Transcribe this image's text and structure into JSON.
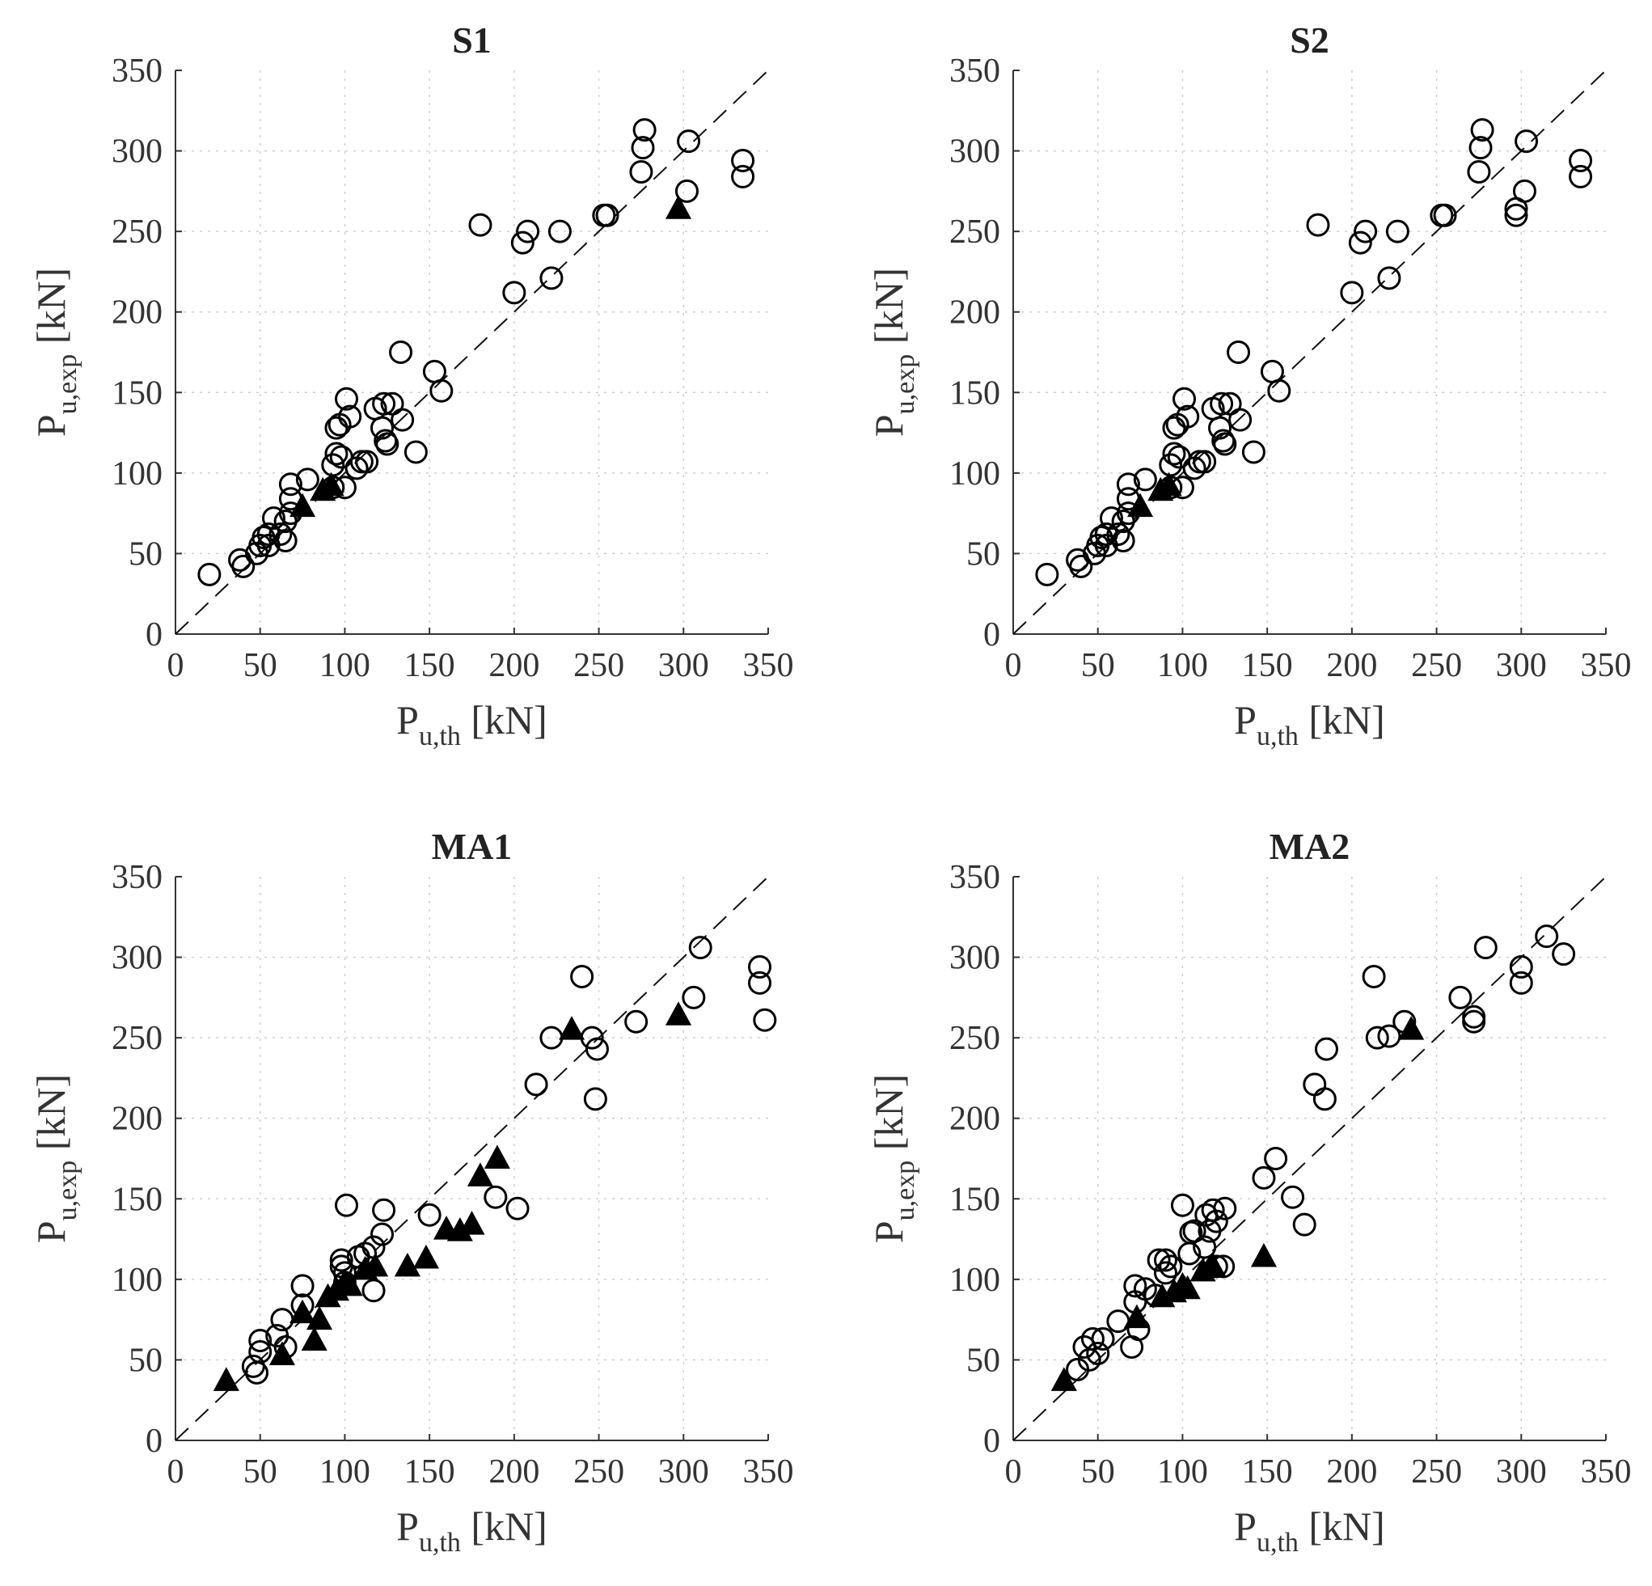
{
  "chart_data": [
    {
      "type": "scatter",
      "title": "S1",
      "xlabel": {
        "main": "P",
        "sub": "u,th",
        "unit": " [kN]"
      },
      "ylabel": {
        "main": "P",
        "sub": "u,exp",
        "unit": " [kN]"
      },
      "xlim": [
        0,
        350
      ],
      "ylim": [
        0,
        350
      ],
      "xticks": [
        0,
        50,
        100,
        150,
        200,
        250,
        300,
        350
      ],
      "yticks": [
        0,
        50,
        100,
        150,
        200,
        250,
        300,
        350
      ],
      "grid": true,
      "reference_line": [
        [
          0,
          0
        ],
        [
          350,
          350
        ]
      ],
      "series": [
        {
          "name": "circles",
          "marker": "circle",
          "points": [
            [
              20,
              37
            ],
            [
              38,
              46
            ],
            [
              40,
              42
            ],
            [
              48,
              50
            ],
            [
              50,
              55
            ],
            [
              52,
              60
            ],
            [
              55,
              62
            ],
            [
              55,
              55
            ],
            [
              58,
              72
            ],
            [
              62,
              62
            ],
            [
              65,
              58
            ],
            [
              65,
              70
            ],
            [
              68,
              75
            ],
            [
              68,
              84
            ],
            [
              68,
              93
            ],
            [
              78,
              96
            ],
            [
              93,
              91
            ],
            [
              93,
              105
            ],
            [
              95,
              112
            ],
            [
              95,
              128
            ],
            [
              97,
              130
            ],
            [
              98,
              110
            ],
            [
              100,
              91
            ],
            [
              101,
              146
            ],
            [
              103,
              135
            ],
            [
              107,
              103
            ],
            [
              110,
              107
            ],
            [
              113,
              107
            ],
            [
              118,
              140
            ],
            [
              122,
              128
            ],
            [
              123,
              143
            ],
            [
              124,
              120
            ],
            [
              125,
              118
            ],
            [
              128,
              143
            ],
            [
              133,
              175
            ],
            [
              134,
              133
            ],
            [
              142,
              113
            ],
            [
              153,
              163
            ],
            [
              157,
              151
            ],
            [
              180,
              254
            ],
            [
              200,
              212
            ],
            [
              205,
              243
            ],
            [
              208,
              250
            ],
            [
              222,
              221
            ],
            [
              227,
              250
            ],
            [
              253,
              260
            ],
            [
              255,
              260
            ],
            [
              275,
              287
            ],
            [
              276,
              302
            ],
            [
              277,
              313
            ],
            [
              302,
              275
            ],
            [
              303,
              306
            ],
            [
              335,
              294
            ],
            [
              335,
              284
            ]
          ]
        },
        {
          "name": "triangles",
          "marker": "triangle",
          "points": [
            [
              75,
              79
            ],
            [
              87,
              89
            ],
            [
              92,
              92
            ],
            [
              297,
              264
            ]
          ]
        }
      ]
    },
    {
      "type": "scatter",
      "title": "S2",
      "xlabel": {
        "main": "P",
        "sub": "u,th",
        "unit": " [kN]"
      },
      "ylabel": {
        "main": "P",
        "sub": "u,exp",
        "unit": " [kN]"
      },
      "xlim": [
        0,
        350
      ],
      "ylim": [
        0,
        350
      ],
      "xticks": [
        0,
        50,
        100,
        150,
        200,
        250,
        300,
        350
      ],
      "yticks": [
        0,
        50,
        100,
        150,
        200,
        250,
        300,
        350
      ],
      "grid": true,
      "reference_line": [
        [
          0,
          0
        ],
        [
          350,
          350
        ]
      ],
      "series": [
        {
          "name": "circles",
          "marker": "circle",
          "points": [
            [
              20,
              37
            ],
            [
              38,
              46
            ],
            [
              40,
              42
            ],
            [
              48,
              50
            ],
            [
              50,
              55
            ],
            [
              52,
              60
            ],
            [
              55,
              62
            ],
            [
              55,
              55
            ],
            [
              58,
              72
            ],
            [
              62,
              62
            ],
            [
              65,
              58
            ],
            [
              65,
              70
            ],
            [
              68,
              75
            ],
            [
              68,
              84
            ],
            [
              68,
              93
            ],
            [
              78,
              96
            ],
            [
              93,
              91
            ],
            [
              93,
              105
            ],
            [
              95,
              112
            ],
            [
              95,
              128
            ],
            [
              97,
              130
            ],
            [
              98,
              110
            ],
            [
              100,
              91
            ],
            [
              101,
              146
            ],
            [
              103,
              135
            ],
            [
              107,
              103
            ],
            [
              110,
              107
            ],
            [
              113,
              107
            ],
            [
              118,
              140
            ],
            [
              122,
              128
            ],
            [
              123,
              143
            ],
            [
              124,
              120
            ],
            [
              125,
              118
            ],
            [
              128,
              143
            ],
            [
              133,
              175
            ],
            [
              134,
              133
            ],
            [
              142,
              113
            ],
            [
              153,
              163
            ],
            [
              157,
              151
            ],
            [
              180,
              254
            ],
            [
              200,
              212
            ],
            [
              205,
              243
            ],
            [
              208,
              250
            ],
            [
              222,
              221
            ],
            [
              227,
              250
            ],
            [
              253,
              260
            ],
            [
              255,
              260
            ],
            [
              275,
              287
            ],
            [
              276,
              302
            ],
            [
              277,
              313
            ],
            [
              297,
              260
            ],
            [
              297,
              264
            ],
            [
              302,
              275
            ],
            [
              303,
              306
            ],
            [
              335,
              294
            ],
            [
              335,
              284
            ]
          ]
        },
        {
          "name": "triangles",
          "marker": "triangle",
          "points": [
            [
              75,
              79
            ],
            [
              87,
              89
            ],
            [
              92,
              92
            ]
          ]
        }
      ]
    },
    {
      "type": "scatter",
      "title": "MA1",
      "xlabel": {
        "main": "P",
        "sub": "u,th",
        "unit": " [kN]"
      },
      "ylabel": {
        "main": "P",
        "sub": "u,exp",
        "unit": " [kN]"
      },
      "xlim": [
        0,
        350
      ],
      "ylim": [
        0,
        350
      ],
      "xticks": [
        0,
        50,
        100,
        150,
        200,
        250,
        300,
        350
      ],
      "yticks": [
        0,
        50,
        100,
        150,
        200,
        250,
        300,
        350
      ],
      "grid": true,
      "reference_line": [
        [
          0,
          0
        ],
        [
          350,
          350
        ]
      ],
      "series": [
        {
          "name": "circles",
          "marker": "circle",
          "points": [
            [
              46,
              46
            ],
            [
              48,
              42
            ],
            [
              50,
              62
            ],
            [
              50,
              55
            ],
            [
              60,
              65
            ],
            [
              63,
              75
            ],
            [
              65,
              58
            ],
            [
              75,
              96
            ],
            [
              75,
              84
            ],
            [
              98,
              112
            ],
            [
              98,
              108
            ],
            [
              100,
              104
            ],
            [
              100,
              98
            ],
            [
              101,
              146
            ],
            [
              108,
              114
            ],
            [
              112,
              116
            ],
            [
              117,
              120
            ],
            [
              117,
              93
            ],
            [
              122,
              128
            ],
            [
              123,
              143
            ],
            [
              150,
              140
            ],
            [
              189,
              151
            ],
            [
              202,
              144
            ],
            [
              213,
              221
            ],
            [
              222,
              250
            ],
            [
              240,
              288
            ],
            [
              246,
              250
            ],
            [
              249,
              243
            ],
            [
              248,
              212
            ],
            [
              272,
              260
            ],
            [
              306,
              275
            ],
            [
              310,
              306
            ],
            [
              345,
              294
            ],
            [
              345,
              284
            ],
            [
              348,
              261
            ]
          ]
        },
        {
          "name": "triangles",
          "marker": "triangle",
          "points": [
            [
              30,
              37
            ],
            [
              63,
              53
            ],
            [
              75,
              79
            ],
            [
              82,
              62
            ],
            [
              85,
              75
            ],
            [
              90,
              89
            ],
            [
              95,
              93
            ],
            [
              100,
              98
            ],
            [
              103,
              96
            ],
            [
              112,
              106
            ],
            [
              118,
              108
            ],
            [
              137,
              108
            ],
            [
              148,
              113
            ],
            [
              160,
              131
            ],
            [
              168,
              130
            ],
            [
              175,
              134
            ],
            [
              180,
              164
            ],
            [
              190,
              175
            ],
            [
              234,
              255
            ],
            [
              297,
              264
            ]
          ]
        }
      ]
    },
    {
      "type": "scatter",
      "title": "MA2",
      "xlabel": {
        "main": "P",
        "sub": "u,th",
        "unit": " [kN]"
      },
      "ylabel": {
        "main": "P",
        "sub": "u,exp",
        "unit": " [kN]"
      },
      "xlim": [
        0,
        350
      ],
      "ylim": [
        0,
        350
      ],
      "xticks": [
        0,
        50,
        100,
        150,
        200,
        250,
        300,
        350
      ],
      "yticks": [
        0,
        50,
        100,
        150,
        200,
        250,
        300,
        350
      ],
      "grid": true,
      "reference_line": [
        [
          0,
          0
        ],
        [
          350,
          350
        ]
      ],
      "series": [
        {
          "name": "circles",
          "marker": "circle",
          "points": [
            [
              38,
              44
            ],
            [
              42,
              58
            ],
            [
              45,
              50
            ],
            [
              47,
              63
            ],
            [
              50,
              54
            ],
            [
              53,
              63
            ],
            [
              62,
              74
            ],
            [
              70,
              58
            ],
            [
              72,
              96
            ],
            [
              72,
              86
            ],
            [
              74,
              69
            ],
            [
              78,
              94
            ],
            [
              84,
              90
            ],
            [
              86,
              112
            ],
            [
              90,
              104
            ],
            [
              90,
              112
            ],
            [
              93,
              108
            ],
            [
              100,
              146
            ],
            [
              104,
              116
            ],
            [
              105,
              129
            ],
            [
              107,
              130
            ],
            [
              113,
              120
            ],
            [
              114,
              140
            ],
            [
              116,
              130
            ],
            [
              118,
              143
            ],
            [
              120,
              136
            ],
            [
              120,
              108
            ],
            [
              124,
              108
            ],
            [
              125,
              144
            ],
            [
              148,
              163
            ],
            [
              155,
              175
            ],
            [
              165,
              151
            ],
            [
              172,
              134
            ],
            [
              178,
              221
            ],
            [
              184,
              212
            ],
            [
              185,
              243
            ],
            [
              213,
              288
            ],
            [
              215,
              250
            ],
            [
              222,
              251
            ],
            [
              231,
              260
            ],
            [
              264,
              275
            ],
            [
              272,
              263
            ],
            [
              272,
              260
            ],
            [
              279,
              306
            ],
            [
              300,
              294
            ],
            [
              300,
              284
            ],
            [
              315,
              313
            ],
            [
              325,
              302
            ]
          ]
        },
        {
          "name": "triangles",
          "marker": "triangle",
          "points": [
            [
              30,
              37
            ],
            [
              73,
              76
            ],
            [
              88,
              89
            ],
            [
              95,
              92
            ],
            [
              100,
              96
            ],
            [
              103,
              94
            ],
            [
              112,
              105
            ],
            [
              118,
              108
            ],
            [
              148,
              114
            ],
            [
              235,
              255
            ]
          ]
        }
      ]
    }
  ]
}
